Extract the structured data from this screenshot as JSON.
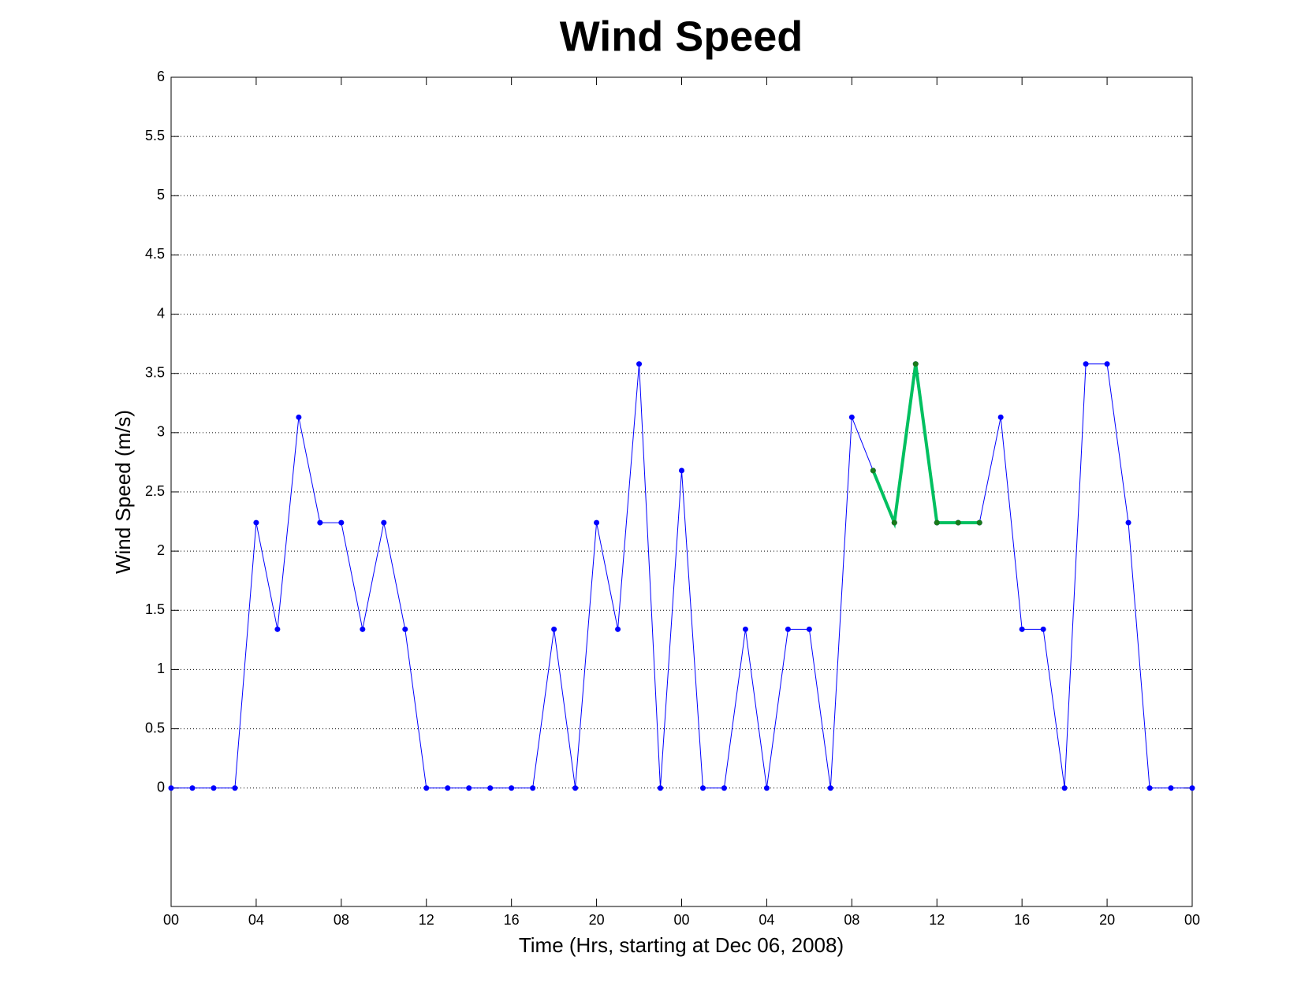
{
  "chart_data": {
    "type": "line",
    "title": "Wind Speed",
    "x_label": "Time (Hrs, starting at Dec 06, 2008)",
    "y_label": "Wind Speed (m/s)",
    "xlim": [
      0,
      48
    ],
    "ylim": [
      -1,
      6
    ],
    "xticks": [
      {
        "value": 0,
        "label": "00"
      },
      {
        "value": 4,
        "label": "04"
      },
      {
        "value": 8,
        "label": "08"
      },
      {
        "value": 12,
        "label": "12"
      },
      {
        "value": 16,
        "label": "16"
      },
      {
        "value": 20,
        "label": "20"
      },
      {
        "value": 24,
        "label": "00"
      },
      {
        "value": 28,
        "label": "04"
      },
      {
        "value": 32,
        "label": "08"
      },
      {
        "value": 36,
        "label": "12"
      },
      {
        "value": 40,
        "label": "16"
      },
      {
        "value": 44,
        "label": "20"
      },
      {
        "value": 48,
        "label": "00"
      }
    ],
    "yticks": [
      0,
      0.5,
      1,
      1.5,
      2,
      2.5,
      3,
      3.5,
      4,
      4.5,
      5,
      5.5,
      6
    ],
    "grid": true,
    "series": [
      {
        "color": "#0000ff",
        "marker_color": "#0000ff",
        "line_width": 1,
        "x": [
          0,
          1,
          2,
          3,
          4,
          5,
          6,
          7,
          8,
          9,
          10,
          11,
          12,
          13,
          14,
          15,
          16,
          17,
          18,
          19,
          20,
          21,
          22,
          23,
          24,
          25,
          26,
          27,
          28,
          29,
          30,
          31,
          32,
          33,
          34,
          35,
          36,
          37,
          38,
          39,
          40,
          41,
          42,
          43,
          44,
          45,
          46,
          47,
          48
        ],
        "values": [
          0,
          0,
          0,
          0,
          2.24,
          1.34,
          3.13,
          2.24,
          2.24,
          1.34,
          2.24,
          1.34,
          0,
          0,
          0,
          0,
          0,
          0,
          1.34,
          0,
          2.24,
          1.34,
          3.58,
          0,
          2.68,
          0,
          0,
          1.34,
          0,
          1.34,
          1.34,
          0,
          3.13,
          2.68,
          2.24,
          3.58,
          2.24,
          2.24,
          2.24,
          3.13,
          1.34,
          1.34,
          0,
          3.58,
          3.58,
          2.24,
          0,
          0,
          0
        ]
      },
      {
        "color": "#00c060",
        "marker_color": "#1a7a1a",
        "line_width": 4,
        "x": [
          33,
          34,
          35,
          36,
          37,
          38
        ],
        "values": [
          2.68,
          2.24,
          3.58,
          2.24,
          2.24,
          2.24
        ]
      }
    ]
  }
}
